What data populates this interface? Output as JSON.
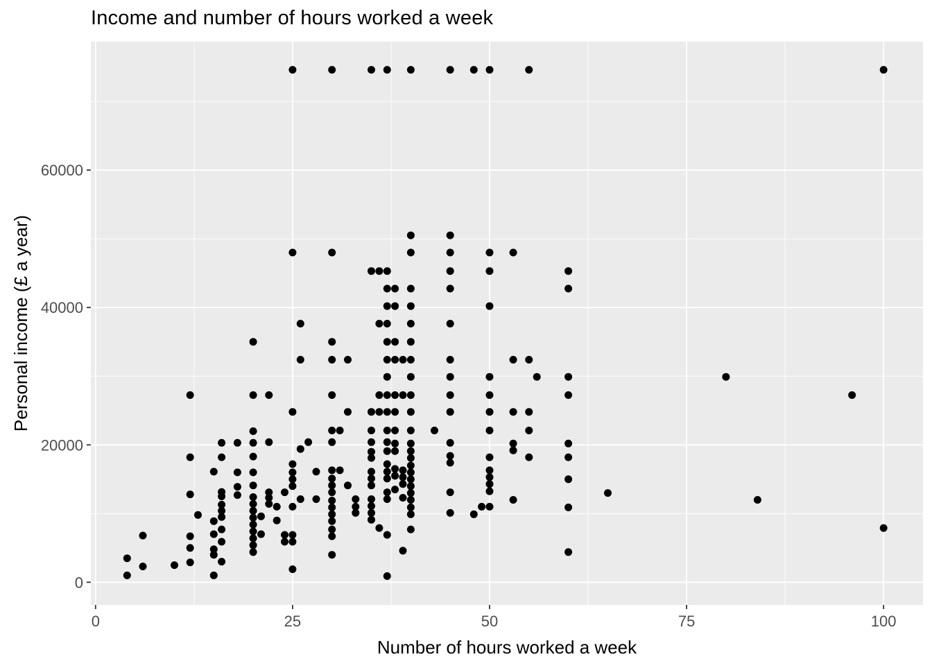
{
  "title": "Income and number of hours worked a week",
  "chart_data": {
    "type": "scatter",
    "title": "Income and number of hours worked a week",
    "xlabel": "Number of hours worked a week",
    "ylabel": "Personal income (£ a year)",
    "x_ticks": [
      0,
      25,
      50,
      75,
      100
    ],
    "y_ticks": [
      0,
      20000,
      40000,
      60000
    ],
    "x_minor_ticks": [
      12.5,
      37.5,
      62.5,
      87.5
    ],
    "y_minor_ticks": [
      10000,
      30000,
      50000,
      70000
    ],
    "xlim": [
      -0.6,
      105
    ],
    "ylim": [
      -3300,
      78700
    ],
    "grid": "major-and-minor-white-on-grey",
    "legend": "none",
    "style": {
      "panel_bg": "#EBEBEB",
      "grid_color": "#FFFFFF",
      "point_color": "#000000",
      "point_radius": 5.5,
      "tick_color": "#333333",
      "tick_label_color": "#4D4D4D",
      "title_color": "#000000"
    },
    "points": [
      [
        4,
        3500
      ],
      [
        4,
        1000
      ],
      [
        6,
        6800
      ],
      [
        6,
        2300
      ],
      [
        10,
        2500
      ],
      [
        12,
        27250
      ],
      [
        12,
        18200
      ],
      [
        12,
        12800
      ],
      [
        12,
        6700
      ],
      [
        12,
        5000
      ],
      [
        12,
        2900
      ],
      [
        13,
        9800
      ],
      [
        15,
        16100
      ],
      [
        15,
        8900
      ],
      [
        15,
        7000
      ],
      [
        15,
        4800
      ],
      [
        15,
        4000
      ],
      [
        15,
        1000
      ],
      [
        16,
        20300
      ],
      [
        16,
        18200
      ],
      [
        16,
        13150
      ],
      [
        16,
        12500
      ],
      [
        16,
        11300
      ],
      [
        16,
        10400
      ],
      [
        16,
        9500
      ],
      [
        16,
        7700
      ],
      [
        16,
        5900
      ],
      [
        16,
        3000
      ],
      [
        18,
        20300
      ],
      [
        18,
        16000
      ],
      [
        18,
        13900
      ],
      [
        18,
        12700
      ],
      [
        20,
        35000
      ],
      [
        20,
        27250
      ],
      [
        20,
        22000
      ],
      [
        20,
        20300
      ],
      [
        20,
        18300
      ],
      [
        20,
        16000
      ],
      [
        20,
        14100
      ],
      [
        20,
        12400
      ],
      [
        20,
        11400
      ],
      [
        20,
        10400
      ],
      [
        20,
        9400
      ],
      [
        20,
        8400
      ],
      [
        20,
        7400
      ],
      [
        20,
        6400
      ],
      [
        20,
        5400
      ],
      [
        20,
        4400
      ],
      [
        21,
        9600
      ],
      [
        21,
        7000
      ],
      [
        22,
        27250
      ],
      [
        22,
        20400
      ],
      [
        22,
        13100
      ],
      [
        22,
        12300
      ],
      [
        22,
        11400
      ],
      [
        23,
        11000
      ],
      [
        23,
        9000
      ],
      [
        24,
        13100
      ],
      [
        24,
        6900
      ],
      [
        24,
        5900
      ],
      [
        25,
        74600
      ],
      [
        25,
        48000
      ],
      [
        25,
        24800
      ],
      [
        25,
        17200
      ],
      [
        25,
        16000
      ],
      [
        25,
        15000
      ],
      [
        25,
        14000
      ],
      [
        25,
        11000
      ],
      [
        25,
        6900
      ],
      [
        25,
        5900
      ],
      [
        25,
        1900
      ],
      [
        26,
        37650
      ],
      [
        26,
        32400
      ],
      [
        26,
        19400
      ],
      [
        26,
        12100
      ],
      [
        27,
        20400
      ],
      [
        28,
        16100
      ],
      [
        28,
        12100
      ],
      [
        30,
        74600
      ],
      [
        30,
        48000
      ],
      [
        30,
        35000
      ],
      [
        30,
        32400
      ],
      [
        30,
        27250
      ],
      [
        30,
        22100
      ],
      [
        30,
        20400
      ],
      [
        30,
        16300
      ],
      [
        30,
        15100
      ],
      [
        30,
        14100
      ],
      [
        30,
        13100
      ],
      [
        30,
        11900
      ],
      [
        30,
        10900
      ],
      [
        30,
        9900
      ],
      [
        30,
        8900
      ],
      [
        30,
        7700
      ],
      [
        30,
        6700
      ],
      [
        30,
        4000
      ],
      [
        31,
        22100
      ],
      [
        31,
        16300
      ],
      [
        32,
        32400
      ],
      [
        32,
        24800
      ],
      [
        32,
        14100
      ],
      [
        33,
        12100
      ],
      [
        33,
        11000
      ],
      [
        33,
        10100
      ],
      [
        35,
        74600
      ],
      [
        35,
        45300
      ],
      [
        35,
        24800
      ],
      [
        35,
        22100
      ],
      [
        35,
        20400
      ],
      [
        35,
        19000
      ],
      [
        35,
        18100
      ],
      [
        35,
        16100
      ],
      [
        35,
        15100
      ],
      [
        35,
        14100
      ],
      [
        35,
        12100
      ],
      [
        35,
        11100
      ],
      [
        35,
        10100
      ],
      [
        35,
        9100
      ],
      [
        36,
        45300
      ],
      [
        36,
        37650
      ],
      [
        36,
        27250
      ],
      [
        36,
        24800
      ],
      [
        36,
        7900
      ],
      [
        37,
        74600
      ],
      [
        37,
        45300
      ],
      [
        37,
        42750
      ],
      [
        37,
        40200
      ],
      [
        37,
        37650
      ],
      [
        37,
        35000
      ],
      [
        37,
        32400
      ],
      [
        37,
        29900
      ],
      [
        37,
        27250
      ],
      [
        37,
        24800
      ],
      [
        37,
        22100
      ],
      [
        37,
        20400
      ],
      [
        37,
        19100
      ],
      [
        37,
        17200
      ],
      [
        37,
        16100
      ],
      [
        37,
        15100
      ],
      [
        37,
        13100
      ],
      [
        37,
        12100
      ],
      [
        37,
        6900
      ],
      [
        37,
        900
      ],
      [
        38,
        42750
      ],
      [
        38,
        40200
      ],
      [
        38,
        35000
      ],
      [
        38,
        32400
      ],
      [
        38,
        27250
      ],
      [
        38,
        24800
      ],
      [
        38,
        22100
      ],
      [
        38,
        20200
      ],
      [
        38,
        19100
      ],
      [
        38,
        16500
      ],
      [
        38,
        15500
      ],
      [
        38,
        13500
      ],
      [
        39,
        32400
      ],
      [
        39,
        27250
      ],
      [
        39,
        16300
      ],
      [
        39,
        15300
      ],
      [
        39,
        14300
      ],
      [
        39,
        12300
      ],
      [
        39,
        4600
      ],
      [
        40,
        74600
      ],
      [
        40,
        50500
      ],
      [
        40,
        48000
      ],
      [
        40,
        42750
      ],
      [
        40,
        40200
      ],
      [
        40,
        37650
      ],
      [
        40,
        35000
      ],
      [
        40,
        32400
      ],
      [
        40,
        29900
      ],
      [
        40,
        27250
      ],
      [
        40,
        24800
      ],
      [
        40,
        22100
      ],
      [
        40,
        20200
      ],
      [
        40,
        19100
      ],
      [
        40,
        18100
      ],
      [
        40,
        17000
      ],
      [
        40,
        16000
      ],
      [
        40,
        15000
      ],
      [
        40,
        14000
      ],
      [
        40,
        13000
      ],
      [
        40,
        12000
      ],
      [
        40,
        10900
      ],
      [
        40,
        9900
      ],
      [
        40,
        7700
      ],
      [
        43,
        22100
      ],
      [
        45,
        74600
      ],
      [
        45,
        50500
      ],
      [
        45,
        48000
      ],
      [
        45,
        45300
      ],
      [
        45,
        42750
      ],
      [
        45,
        37650
      ],
      [
        45,
        32400
      ],
      [
        45,
        29900
      ],
      [
        45,
        27250
      ],
      [
        45,
        24800
      ],
      [
        45,
        20300
      ],
      [
        45,
        18400
      ],
      [
        45,
        17400
      ],
      [
        45,
        13100
      ],
      [
        45,
        10100
      ],
      [
        48,
        74600
      ],
      [
        48,
        9900
      ],
      [
        49,
        11000
      ],
      [
        50,
        74600
      ],
      [
        50,
        48000
      ],
      [
        50,
        45300
      ],
      [
        50,
        40200
      ],
      [
        50,
        29900
      ],
      [
        50,
        27250
      ],
      [
        50,
        24800
      ],
      [
        50,
        22100
      ],
      [
        50,
        18200
      ],
      [
        50,
        16300
      ],
      [
        50,
        15300
      ],
      [
        50,
        14300
      ],
      [
        50,
        13250
      ],
      [
        50,
        11000
      ],
      [
        53,
        48000
      ],
      [
        53,
        32400
      ],
      [
        53,
        24800
      ],
      [
        53,
        20200
      ],
      [
        53,
        19200
      ],
      [
        53,
        12000
      ],
      [
        55,
        74600
      ],
      [
        55,
        32400
      ],
      [
        55,
        24800
      ],
      [
        55,
        22100
      ],
      [
        55,
        18200
      ],
      [
        56,
        29900
      ],
      [
        60,
        45300
      ],
      [
        60,
        42750
      ],
      [
        60,
        29900
      ],
      [
        60,
        27250
      ],
      [
        60,
        20200
      ],
      [
        60,
        18200
      ],
      [
        60,
        15000
      ],
      [
        60,
        10900
      ],
      [
        60,
        4400
      ],
      [
        65,
        13000
      ],
      [
        80,
        29900
      ],
      [
        84,
        12000
      ],
      [
        96,
        27250
      ],
      [
        100,
        74600
      ],
      [
        100,
        7900
      ]
    ]
  }
}
